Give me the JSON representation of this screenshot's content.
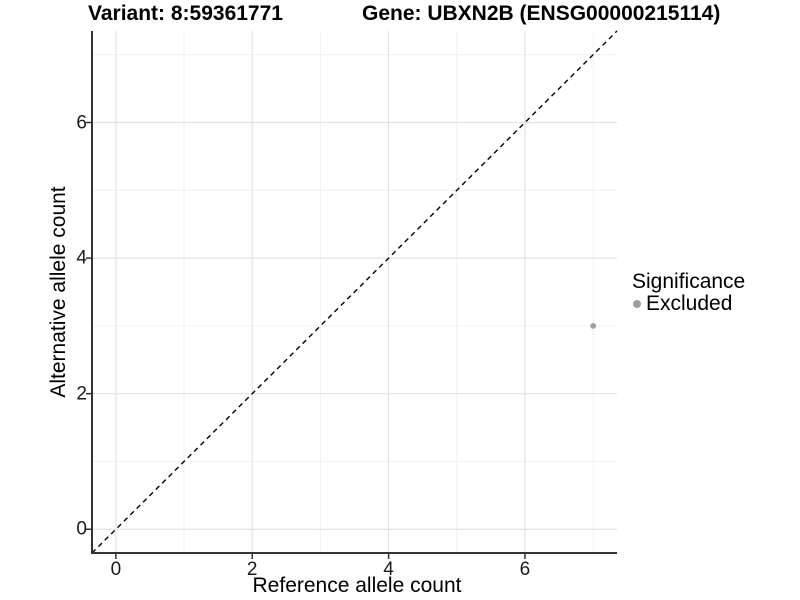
{
  "chart_data": {
    "type": "scatter",
    "title_left": "Variant: 8:59361771",
    "title_right": "Gene: UBXN2B (ENSG00000215114)",
    "xlabel": "Reference allele count",
    "ylabel": "Alternative allele count",
    "xlim": [
      -0.35,
      7.35
    ],
    "ylim": [
      -0.35,
      7.35
    ],
    "x_major_ticks": [
      0,
      2,
      4,
      6
    ],
    "y_major_ticks": [
      0,
      2,
      4,
      6
    ],
    "x_minor_gridlines": [
      1,
      3,
      5,
      7
    ],
    "y_minor_gridlines": [
      1,
      3,
      5,
      7
    ],
    "grid": true,
    "identity_line": {
      "style": "dashed",
      "from": [
        -0.35,
        -0.35
      ],
      "to": [
        7.35,
        7.35
      ],
      "color": "#000000"
    },
    "series": [
      {
        "name": "Excluded",
        "points": [
          {
            "x": 7,
            "y": 3
          }
        ],
        "color": "#9f9f9f"
      }
    ],
    "legend": {
      "title": "Significance",
      "position": "right",
      "entries": [
        {
          "label": "Excluded",
          "color": "#a0a0a0"
        }
      ]
    },
    "colors": {
      "background": "#ffffff",
      "major_grid": "#e3e3e3",
      "minor_grid": "#f1f1f1",
      "axis_line": "#333333",
      "tick_mark": "#333333",
      "point": "#9f9f9f"
    }
  }
}
